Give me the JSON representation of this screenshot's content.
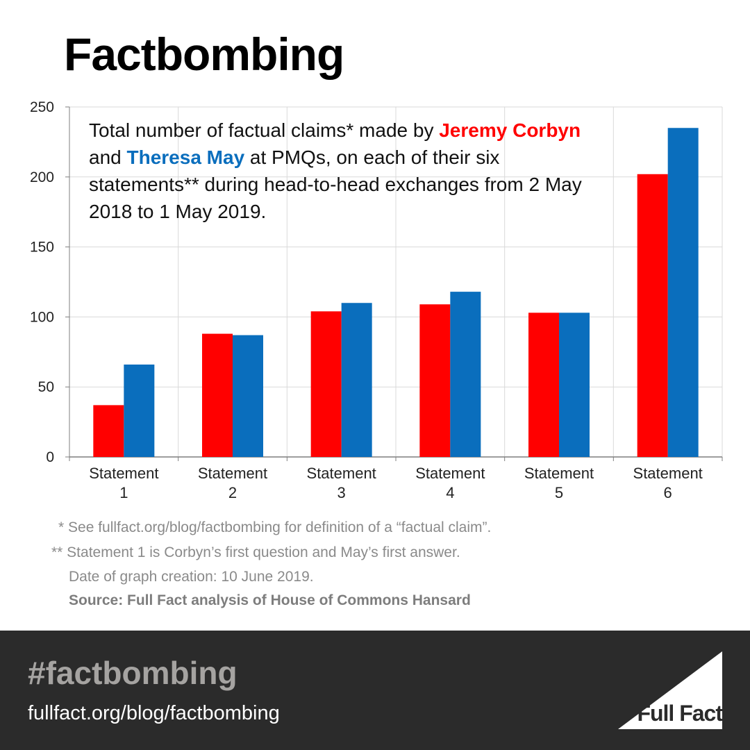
{
  "title": "Factbombing",
  "caption": {
    "line_start": "Total number of factual claims* made by",
    "corbyn_name": "Jeremy Corbyn",
    "and_word": "and",
    "may_name": "Theresa May",
    "line_rest": "at PMQs, on each of their six statements** during head-to-head exchanges from 2 May 2018 to 1 May 2019."
  },
  "colors": {
    "corbyn": "#ff0000",
    "may": "#0a6ebd",
    "grid": "#d9d9d9",
    "axis": "#7f7f7f",
    "footer_bg": "#2b2b2b"
  },
  "chart_data": {
    "type": "bar",
    "categories": [
      [
        "Statement",
        "1"
      ],
      [
        "Statement",
        "2"
      ],
      [
        "Statement",
        "3"
      ],
      [
        "Statement",
        "4"
      ],
      [
        "Statement",
        "5"
      ],
      [
        "Statement",
        "6"
      ]
    ],
    "series": [
      {
        "name": "Jeremy Corbyn",
        "color": "#ff0000",
        "values": [
          37,
          88,
          104,
          109,
          103,
          202
        ]
      },
      {
        "name": "Theresa May",
        "color": "#0a6ebd",
        "values": [
          66,
          87,
          110,
          118,
          103,
          235
        ]
      }
    ],
    "ylim": [
      0,
      250
    ],
    "yticks": [
      0,
      50,
      100,
      150,
      200,
      250
    ],
    "grid": true,
    "legend": "in caption text"
  },
  "notes": {
    "note_1": "* See fullfact.org/blog/factbombing for definition of a “factual claim”.",
    "note_2": "** Statement 1 is Corbyn’s first question and May’s first answer.",
    "note_3": "Date of graph creation: 10 June 2019.",
    "source": "Source: Full Fact analysis of House of Commons Hansard"
  },
  "footer": {
    "hashtag": "#factbombing",
    "url": "fullfact.org/blog/factbombing",
    "brand": "Full Fact"
  }
}
